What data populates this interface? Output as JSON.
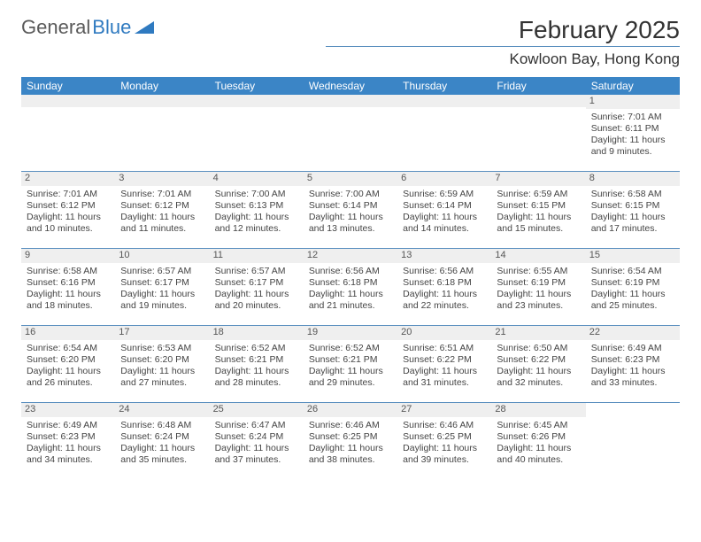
{
  "logo": {
    "part1": "General",
    "part2": "Blue"
  },
  "title": "February 2025",
  "location": "Kowloon Bay, Hong Kong",
  "colors": {
    "header_bg": "#3b85c6",
    "header_fg": "#ffffff",
    "rule": "#5a8fbf",
    "shade": "#efefef",
    "text": "#444444",
    "logo_gray": "#5a5a5a",
    "logo_blue": "#2f7ac0"
  },
  "day_names": [
    "Sunday",
    "Monday",
    "Tuesday",
    "Wednesday",
    "Thursday",
    "Friday",
    "Saturday"
  ],
  "weeks": [
    [
      null,
      null,
      null,
      null,
      null,
      null,
      {
        "n": "1",
        "sr": "7:01 AM",
        "ss": "6:11 PM",
        "dl": "11 hours and 9 minutes."
      }
    ],
    [
      {
        "n": "2",
        "sr": "7:01 AM",
        "ss": "6:12 PM",
        "dl": "11 hours and 10 minutes."
      },
      {
        "n": "3",
        "sr": "7:01 AM",
        "ss": "6:12 PM",
        "dl": "11 hours and 11 minutes."
      },
      {
        "n": "4",
        "sr": "7:00 AM",
        "ss": "6:13 PM",
        "dl": "11 hours and 12 minutes."
      },
      {
        "n": "5",
        "sr": "7:00 AM",
        "ss": "6:14 PM",
        "dl": "11 hours and 13 minutes."
      },
      {
        "n": "6",
        "sr": "6:59 AM",
        "ss": "6:14 PM",
        "dl": "11 hours and 14 minutes."
      },
      {
        "n": "7",
        "sr": "6:59 AM",
        "ss": "6:15 PM",
        "dl": "11 hours and 15 minutes."
      },
      {
        "n": "8",
        "sr": "6:58 AM",
        "ss": "6:15 PM",
        "dl": "11 hours and 17 minutes."
      }
    ],
    [
      {
        "n": "9",
        "sr": "6:58 AM",
        "ss": "6:16 PM",
        "dl": "11 hours and 18 minutes."
      },
      {
        "n": "10",
        "sr": "6:57 AM",
        "ss": "6:17 PM",
        "dl": "11 hours and 19 minutes."
      },
      {
        "n": "11",
        "sr": "6:57 AM",
        "ss": "6:17 PM",
        "dl": "11 hours and 20 minutes."
      },
      {
        "n": "12",
        "sr": "6:56 AM",
        "ss": "6:18 PM",
        "dl": "11 hours and 21 minutes."
      },
      {
        "n": "13",
        "sr": "6:56 AM",
        "ss": "6:18 PM",
        "dl": "11 hours and 22 minutes."
      },
      {
        "n": "14",
        "sr": "6:55 AM",
        "ss": "6:19 PM",
        "dl": "11 hours and 23 minutes."
      },
      {
        "n": "15",
        "sr": "6:54 AM",
        "ss": "6:19 PM",
        "dl": "11 hours and 25 minutes."
      }
    ],
    [
      {
        "n": "16",
        "sr": "6:54 AM",
        "ss": "6:20 PM",
        "dl": "11 hours and 26 minutes."
      },
      {
        "n": "17",
        "sr": "6:53 AM",
        "ss": "6:20 PM",
        "dl": "11 hours and 27 minutes."
      },
      {
        "n": "18",
        "sr": "6:52 AM",
        "ss": "6:21 PM",
        "dl": "11 hours and 28 minutes."
      },
      {
        "n": "19",
        "sr": "6:52 AM",
        "ss": "6:21 PM",
        "dl": "11 hours and 29 minutes."
      },
      {
        "n": "20",
        "sr": "6:51 AM",
        "ss": "6:22 PM",
        "dl": "11 hours and 31 minutes."
      },
      {
        "n": "21",
        "sr": "6:50 AM",
        "ss": "6:22 PM",
        "dl": "11 hours and 32 minutes."
      },
      {
        "n": "22",
        "sr": "6:49 AM",
        "ss": "6:23 PM",
        "dl": "11 hours and 33 minutes."
      }
    ],
    [
      {
        "n": "23",
        "sr": "6:49 AM",
        "ss": "6:23 PM",
        "dl": "11 hours and 34 minutes."
      },
      {
        "n": "24",
        "sr": "6:48 AM",
        "ss": "6:24 PM",
        "dl": "11 hours and 35 minutes."
      },
      {
        "n": "25",
        "sr": "6:47 AM",
        "ss": "6:24 PM",
        "dl": "11 hours and 37 minutes."
      },
      {
        "n": "26",
        "sr": "6:46 AM",
        "ss": "6:25 PM",
        "dl": "11 hours and 38 minutes."
      },
      {
        "n": "27",
        "sr": "6:46 AM",
        "ss": "6:25 PM",
        "dl": "11 hours and 39 minutes."
      },
      {
        "n": "28",
        "sr": "6:45 AM",
        "ss": "6:26 PM",
        "dl": "11 hours and 40 minutes."
      },
      null
    ]
  ],
  "labels": {
    "sunrise": "Sunrise:",
    "sunset": "Sunset:",
    "daylight": "Daylight:"
  }
}
